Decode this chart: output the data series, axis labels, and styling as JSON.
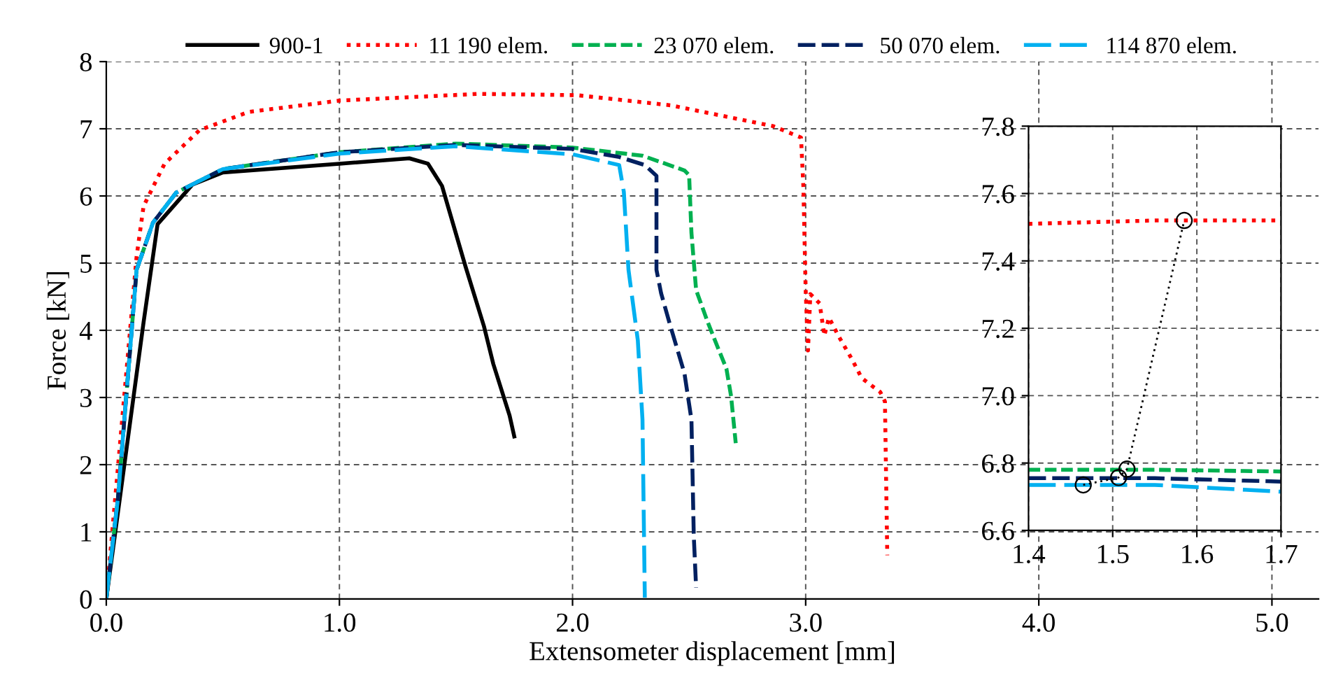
{
  "chart_data": [
    {
      "type": "line",
      "xlabel": "Extensometer displacement [mm]",
      "ylabel": "Force [kN]",
      "xlim": [
        0,
        5.2
      ],
      "xticks": [
        {
          "value": 0,
          "label": "0.0"
        },
        {
          "value": 1,
          "label": "1.0"
        },
        {
          "value": 2,
          "label": "2.0"
        },
        {
          "value": 3,
          "label": "3.0"
        },
        {
          "value": 4,
          "label": "4.0"
        },
        {
          "value": 5,
          "label": "5.0"
        }
      ],
      "ylim": [
        0,
        8
      ],
      "yticks": [
        0,
        1,
        2,
        3,
        4,
        5,
        6,
        7,
        8
      ],
      "grid": true,
      "legend": "top",
      "series": [
        {
          "name": "900-1",
          "color": "#000000",
          "line_style": "solid",
          "x": [
            0,
            0.16,
            0.22,
            0.37,
            0.5,
            1.0,
            1.3,
            1.38,
            1.44,
            1.54,
            1.62,
            1.66,
            1.73,
            1.75
          ],
          "values": [
            0,
            4.12,
            5.58,
            6.17,
            6.35,
            6.48,
            6.56,
            6.48,
            6.15,
            4.96,
            4.06,
            3.5,
            2.73,
            2.42
          ]
        },
        {
          "name": "11 190 elem.",
          "color": "#ff0000",
          "line_style": "dotted",
          "x": [
            0,
            0.13,
            0.16,
            0.25,
            0.4,
            0.61,
            1.0,
            1.6,
            2.02,
            2.42,
            2.86,
            2.98,
            2.99,
            3.0,
            3.01,
            3.02,
            3.06,
            3.08,
            3.1,
            3.14,
            3.2,
            3.24,
            3.32,
            3.34,
            3.35
          ],
          "values": [
            0,
            5.1,
            5.85,
            6.48,
            6.98,
            7.25,
            7.42,
            7.52,
            7.5,
            7.35,
            7.04,
            6.87,
            6.15,
            4.6,
            3.7,
            4.54,
            4.4,
            3.92,
            4.19,
            3.92,
            3.56,
            3.29,
            3.08,
            2.94,
            0.65
          ]
        },
        {
          "name": "23 070 elem.",
          "color": "#00b050",
          "line_style": "dashed",
          "x": [
            0,
            0.05,
            0.13,
            0.2,
            0.3,
            0.5,
            1.0,
            1.5,
            2.0,
            2.3,
            2.48,
            2.5,
            2.51,
            2.53,
            2.58,
            2.62,
            2.66,
            2.68,
            2.7
          ],
          "values": [
            0,
            1.5,
            4.9,
            5.6,
            6.05,
            6.4,
            6.65,
            6.78,
            6.72,
            6.6,
            6.38,
            6.31,
            5.45,
            4.6,
            4.12,
            3.77,
            3.43,
            3.02,
            2.32
          ]
        },
        {
          "name": "50 070 elem.",
          "color": "#002060",
          "line_style": "dashed",
          "x": [
            0,
            0.05,
            0.13,
            0.2,
            0.3,
            0.5,
            1.0,
            1.5,
            2.0,
            2.2,
            2.31,
            2.36,
            2.36,
            2.38,
            2.42,
            2.45,
            2.48,
            2.51,
            2.52,
            2.53
          ],
          "values": [
            0,
            1.5,
            4.9,
            5.6,
            6.05,
            6.4,
            6.65,
            6.76,
            6.7,
            6.58,
            6.46,
            6.3,
            4.9,
            4.55,
            4.06,
            3.71,
            3.36,
            2.67,
            0.94,
            0.17
          ]
        },
        {
          "name": "114 870 elem.",
          "color": "#00b0f0",
          "line_style": "dashed",
          "x": [
            0,
            0.05,
            0.13,
            0.2,
            0.3,
            0.5,
            1.0,
            1.5,
            2.0,
            2.15,
            2.2,
            2.22,
            2.24,
            2.28,
            2.3,
            2.31
          ],
          "values": [
            0,
            1.5,
            4.9,
            5.6,
            6.05,
            6.4,
            6.63,
            6.74,
            6.62,
            6.5,
            6.46,
            6.06,
            4.9,
            3.85,
            2.67,
            0.02
          ]
        }
      ]
    },
    {
      "type": "line",
      "xlim": [
        1.4,
        1.7
      ],
      "xticks": [
        1.4,
        1.5,
        1.6,
        1.7
      ],
      "ylim": [
        6.6,
        7.8
      ],
      "yticks": [
        6.6,
        6.8,
        {
          "value": 7.0,
          "label": "7.0"
        },
        7.2,
        7.4,
        7.6,
        7.8
      ],
      "grid": true,
      "series": [
        {
          "color": "#ff0000",
          "line_style": "dotted",
          "x": [
            1.4,
            1.55,
            1.7
          ],
          "values": [
            7.51,
            7.52,
            7.52
          ]
        },
        {
          "color": "#00b050",
          "line_style": "dashed",
          "x": [
            1.4,
            1.55,
            1.7
          ],
          "values": [
            6.78,
            6.78,
            6.775
          ]
        },
        {
          "color": "#002060",
          "line_style": "dashed",
          "x": [
            1.4,
            1.55,
            1.7
          ],
          "values": [
            6.755,
            6.755,
            6.745
          ]
        },
        {
          "color": "#00b0f0",
          "line_style": "dashed",
          "x": [
            1.4,
            1.55,
            1.7
          ],
          "values": [
            6.735,
            6.735,
            6.715
          ]
        },
        {
          "color": "#000000",
          "line_style": "dotted",
          "marker": "circle",
          "x": [
            1.465,
            1.507,
            1.517,
            1.585
          ],
          "values": [
            6.735,
            6.757,
            6.782,
            7.52
          ]
        }
      ]
    }
  ]
}
